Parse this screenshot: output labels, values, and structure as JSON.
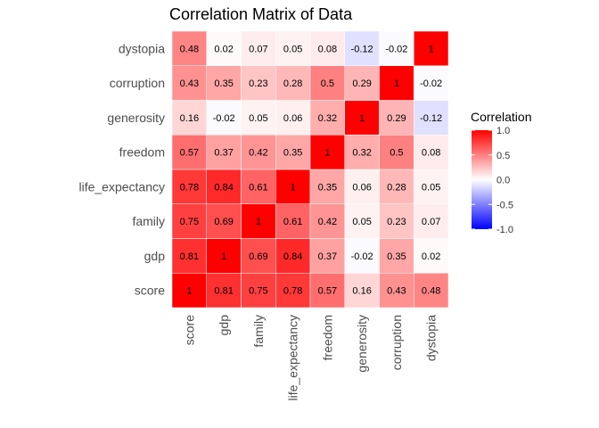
{
  "chart_data": {
    "type": "heatmap",
    "title": "Correlation Matrix of Data",
    "xlabel": "",
    "ylabel": "",
    "variables": [
      "score",
      "gdp",
      "family",
      "life_expectancy",
      "freedom",
      "generosity",
      "corruption",
      "dystopia"
    ],
    "matrix": [
      [
        1,
        0.81,
        0.75,
        0.78,
        0.57,
        0.16,
        0.43,
        0.48
      ],
      [
        0.81,
        1,
        0.69,
        0.84,
        0.37,
        -0.02,
        0.35,
        0.02
      ],
      [
        0.75,
        0.69,
        1,
        0.61,
        0.42,
        0.05,
        0.23,
        0.07
      ],
      [
        0.78,
        0.84,
        0.61,
        1,
        0.35,
        0.06,
        0.28,
        0.05
      ],
      [
        0.57,
        0.37,
        0.42,
        0.35,
        1,
        0.32,
        0.5,
        0.08
      ],
      [
        0.16,
        -0.02,
        0.05,
        0.06,
        0.32,
        1,
        0.29,
        -0.12
      ],
      [
        0.43,
        0.35,
        0.23,
        0.28,
        0.5,
        0.29,
        1,
        -0.02
      ],
      [
        0.48,
        0.02,
        0.07,
        0.05,
        0.08,
        -0.12,
        -0.02,
        1
      ]
    ],
    "colorscale": {
      "low": "#0000ff",
      "mid": "#ffffff",
      "high": "#ff0000",
      "domain": [
        -1,
        1
      ]
    },
    "legend": {
      "title": "Correlation",
      "placement": "right",
      "ticks": [
        "1.0",
        "0.5",
        "0.0",
        "-0.5",
        "-1.0"
      ],
      "tick_values": [
        1.0,
        0.5,
        0.0,
        -0.5,
        -1.0
      ]
    },
    "grid": false
  }
}
